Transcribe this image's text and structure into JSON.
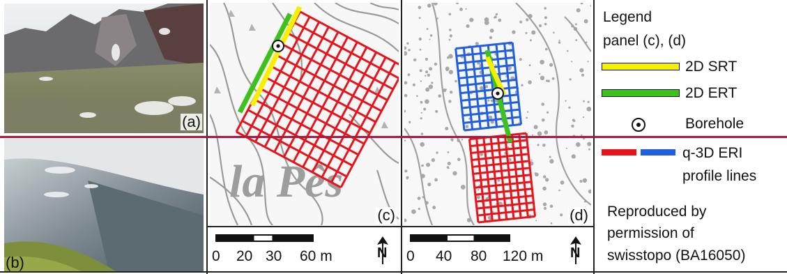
{
  "panels": {
    "a_label": "(a)",
    "b_label": "(b)",
    "c_label": "(c)",
    "d_label": "(d)",
    "place_name": "la Pês"
  },
  "scalebar_c": {
    "t0": "0",
    "t1": "20",
    "t2": "30",
    "t3": "60 m"
  },
  "scalebar_d": {
    "t0": "0",
    "t1": "40",
    "t2": "80",
    "t3": "120 m"
  },
  "north_label": "N",
  "legend": {
    "title_line1": "Legend",
    "title_line2": "panel (c), (d)",
    "srt": "2D SRT",
    "ert": "2D ERT",
    "borehole": "Borehole",
    "eri_line1": "q-3D ERI",
    "eri_line2": "profile lines",
    "credit_line1": "Reproduced by",
    "credit_line2": "permission of",
    "credit_line3": "swisstopo (BA16050)"
  },
  "colors": {
    "srt": "#f5ef00",
    "ert": "#3cc21a",
    "eri_red": "#e8141b",
    "eri_blue": "#1f5fe0",
    "divider": "#b0173a"
  }
}
